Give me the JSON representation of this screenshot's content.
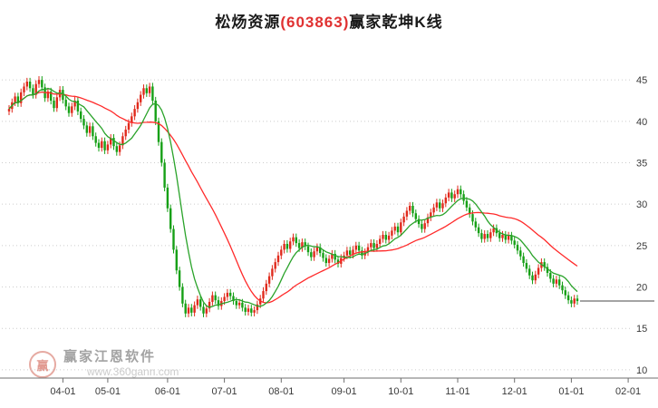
{
  "title": {
    "prefix": "松炀资源",
    "code": "(603863)",
    "suffix": "赢家乾坤K线"
  },
  "watermark": {
    "brand": "赢家江恩软件",
    "url": "www.360gann.com",
    "logo_char": "赢"
  },
  "colors": {
    "up": "#e02a1c",
    "down": "#16a016",
    "ma_fast": "#2aa32a",
    "ma_slow": "#ff2a2a",
    "grid": "#cccccc",
    "axis": "#6f6f6f",
    "label": "#3a3a3a",
    "last_price_line": "#4a4a4a",
    "title_code": "#e03131"
  },
  "chart_data": {
    "type": "candlestick",
    "title": "松炀资源(603863)赢家乾坤K线",
    "xlabel": "",
    "ylabel": "",
    "grid": "dotted-horizontal",
    "y_axis_side": "right",
    "y_ticks": [
      45,
      40,
      35,
      30,
      25,
      20,
      15,
      10
    ],
    "ylim": [
      9.0,
      48.3
    ],
    "x_tick_labels": [
      "04-01",
      "05-01",
      "06-01",
      "07-01",
      "08-01",
      "09-01",
      "10-01",
      "11-01",
      "12-01",
      "01-01",
      "02-01"
    ],
    "x_tick_indices": [
      18,
      33,
      53,
      72,
      91,
      112,
      131,
      150,
      169,
      188,
      207
    ],
    "ma_fast_window": 10,
    "ma_slow_window": 30,
    "wick": 0.45,
    "first_open_offset": 0.3,
    "closes": [
      41.5,
      42.3,
      43.0,
      42.2,
      43.5,
      44.2,
      44.8,
      44.0,
      43.2,
      44.5,
      45.0,
      44.1,
      42.8,
      43.6,
      42.5,
      41.6,
      42.9,
      43.8,
      42.6,
      41.8,
      41.0,
      41.8,
      42.5,
      41.2,
      40.3,
      39.5,
      38.6,
      39.4,
      38.2,
      37.4,
      36.8,
      37.6,
      36.5,
      37.2,
      38.0,
      37.0,
      36.3,
      37.1,
      38.2,
      39.0,
      39.8,
      40.6,
      41.5,
      42.3,
      43.2,
      44.0,
      43.4,
      44.2,
      42.5,
      40.0,
      37.5,
      35.0,
      32.0,
      29.5,
      27.0,
      24.5,
      22.0,
      20.0,
      18.0,
      16.8,
      17.5,
      16.9,
      17.8,
      18.5,
      17.6,
      16.8,
      17.4,
      18.2,
      19.0,
      18.4,
      17.7,
      18.3,
      18.8,
      19.3,
      18.9,
      18.3,
      17.8,
      18.1,
      17.5,
      17.0,
      17.4,
      16.9,
      17.2,
      17.9,
      18.6,
      19.5,
      20.4,
      21.3,
      22.2,
      23.0,
      23.8,
      24.5,
      25.2,
      24.6,
      25.5,
      26.0,
      25.3,
      24.7,
      25.4,
      24.9,
      24.2,
      23.6,
      24.3,
      24.8,
      24.1,
      23.5,
      22.9,
      23.4,
      24.0,
      23.3,
      22.8,
      23.5,
      23.8,
      24.4,
      23.9,
      24.5,
      25.0,
      24.4,
      23.8,
      24.2,
      24.8,
      25.3,
      24.7,
      25.2,
      25.8,
      26.3,
      25.7,
      26.2,
      26.8,
      27.3,
      26.6,
      27.8,
      28.5,
      29.2,
      29.8,
      28.9,
      28.2,
      27.6,
      27.0,
      27.7,
      28.4,
      29.0,
      29.6,
      30.2,
      29.5,
      30.1,
      30.8,
      31.4,
      30.7,
      31.2,
      31.8,
      31.2,
      30.4,
      29.6,
      28.8,
      27.9,
      27.2,
      26.5,
      25.8,
      26.4,
      25.9,
      26.6,
      27.1,
      26.5,
      25.9,
      26.3,
      25.7,
      26.2,
      25.6,
      25.1,
      24.4,
      23.7,
      22.9,
      22.2,
      21.4,
      20.8,
      21.5,
      22.3,
      23.0,
      22.4,
      21.7,
      21.0,
      20.4,
      20.9,
      20.2,
      19.6,
      19.0,
      18.4,
      18.0,
      18.6,
      18.3
    ]
  }
}
